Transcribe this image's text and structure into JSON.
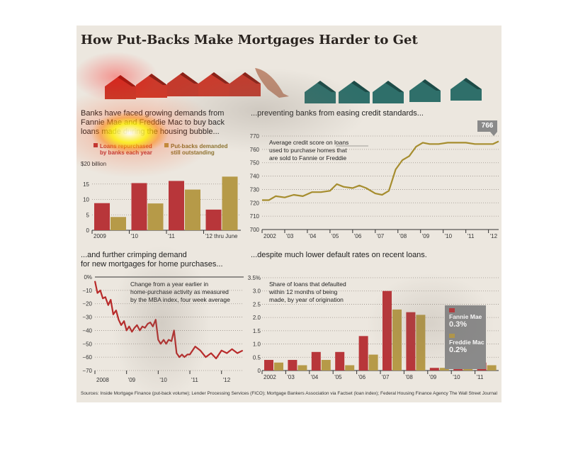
{
  "title": "How Put-Backs Make Mortgages Harder to Get",
  "sources": "Sources: Inside Mortgage Finance (put-back volume); Lender Processing Services (FICO); Mortgage Bankers Association via Factset (loan index); Federal Housing Finance Agency",
  "credit": "The Wall Street Journal",
  "colors": {
    "red": "#b8363a",
    "gold": "#b69a48",
    "red_line": "#b82a2a",
    "gold_line": "#a68d2e"
  },
  "chart_data": [
    {
      "type": "bar",
      "title_lines": [
        "Banks have faced growing demands from",
        "Fannie Mae and Freddie Mac to buy back",
        "loans made during the housing bubble..."
      ],
      "unit_label": "$20 billion",
      "categories": [
        "2009",
        "'10",
        "'11",
        "'12 thru June"
      ],
      "series": [
        {
          "name_lines": [
            "Loans repurchased",
            "by banks each year"
          ],
          "values": [
            8.8,
            15.3,
            16.0,
            6.7
          ]
        },
        {
          "name_lines": [
            "Put-backs demanded",
            "still outstanding"
          ],
          "values": [
            4.3,
            8.7,
            13.2,
            17.4
          ]
        }
      ],
      "yticks": [
        "0",
        "5",
        "10",
        "15"
      ],
      "ylim": [
        0,
        20
      ]
    },
    {
      "type": "line",
      "title": "...preventing banks from easing credit standards...",
      "note_lines": [
        "Average credit score on loans",
        "used to purchase homes that",
        "are sold to Fannie or Freddie"
      ],
      "x_labels": [
        "2002",
        "'03",
        "'04",
        "'05",
        "'06",
        "'07",
        "'08",
        "'09",
        "'10",
        "'11",
        "'12"
      ],
      "yticks": [
        "700",
        "710",
        "720",
        "730",
        "740",
        "750",
        "760",
        "770"
      ],
      "ylim": [
        700,
        770
      ],
      "callout": "766",
      "x": [
        2002.0,
        2002.3,
        2002.6,
        2003.0,
        2003.4,
        2003.8,
        2004.2,
        2004.6,
        2005.0,
        2005.3,
        2005.6,
        2006.0,
        2006.3,
        2006.6,
        2007.0,
        2007.3,
        2007.6,
        2007.9,
        2008.2,
        2008.5,
        2008.8,
        2009.1,
        2009.4,
        2009.8,
        2010.2,
        2010.6,
        2011.0,
        2011.4,
        2011.8,
        2012.2,
        2012.45
      ],
      "y": [
        722,
        722,
        725,
        724,
        726,
        725,
        728,
        728,
        729,
        734,
        732,
        731,
        733,
        731,
        727,
        726,
        729,
        745,
        752,
        755,
        762,
        765,
        764,
        764,
        765,
        765,
        765,
        764,
        764,
        764,
        766
      ]
    },
    {
      "type": "line",
      "title_lines": [
        "...and further crimping demand",
        "for new mortgages for home purchases..."
      ],
      "note_lines": [
        "Change from a year earlier in",
        "home-purchase activity as measured",
        "by the MBA index, four week average"
      ],
      "x_labels": [
        "2008",
        "'09",
        "'10",
        "'11",
        "'12"
      ],
      "yticks": [
        "0%",
        "−10",
        "−20",
        "−30",
        "−40",
        "−50",
        "−60",
        "−70"
      ],
      "ylim": [
        -70,
        0
      ],
      "x": [
        2008.0,
        2008.08,
        2008.17,
        2008.25,
        2008.33,
        2008.42,
        2008.5,
        2008.58,
        2008.67,
        2008.75,
        2008.83,
        2008.92,
        2009.0,
        2009.08,
        2009.17,
        2009.25,
        2009.33,
        2009.42,
        2009.5,
        2009.58,
        2009.67,
        2009.75,
        2009.83,
        2009.92,
        2010.0,
        2010.08,
        2010.17,
        2010.25,
        2010.33,
        2010.42,
        2010.5,
        2010.58,
        2010.67,
        2010.75,
        2010.83,
        2010.92,
        2011.0,
        2011.17,
        2011.33,
        2011.5,
        2011.67,
        2011.83,
        2012.0,
        2012.17,
        2012.33,
        2012.5,
        2012.67
      ],
      "y": [
        -3,
        -12,
        -10,
        -16,
        -15,
        -21,
        -17,
        -28,
        -25,
        -32,
        -36,
        -33,
        -40,
        -37,
        -41,
        -38,
        -36,
        -40,
        -37,
        -38,
        -35,
        -34,
        -37,
        -32,
        -47,
        -50,
        -47,
        -50,
        -47,
        -48,
        -40,
        -57,
        -60,
        -58,
        -60,
        -58,
        -58,
        -52,
        -55,
        -60,
        -57,
        -61,
        -55,
        -57,
        -54,
        -57,
        -55
      ]
    },
    {
      "type": "bar",
      "title": "...despite much lower default rates on recent loans.",
      "note_lines": [
        "Share of loans that defaulted",
        "within 12 months of being",
        "made, by year of origination"
      ],
      "categories": [
        "2002",
        "'03",
        "'04",
        "'05",
        "'06",
        "'07",
        "'08",
        "'09",
        "'10",
        "'11"
      ],
      "series": [
        {
          "name": "Fannie Mae",
          "value_label": "0.3%",
          "values": [
            0.4,
            0.4,
            0.7,
            0.7,
            1.3,
            3.0,
            2.2,
            0.1,
            0.2,
            0.3
          ]
        },
        {
          "name": "Freddie Mac",
          "value_label": "0.2%",
          "values": [
            0.3,
            0.2,
            0.4,
            0.2,
            0.6,
            2.3,
            2.1,
            0.1,
            0.1,
            0.2
          ]
        }
      ],
      "yticks": [
        "0",
        "0.5",
        "1.0",
        "1.5",
        "2.0",
        "2.5",
        "3.0",
        "3.5%"
      ],
      "ylim": [
        0,
        3.5
      ]
    }
  ]
}
